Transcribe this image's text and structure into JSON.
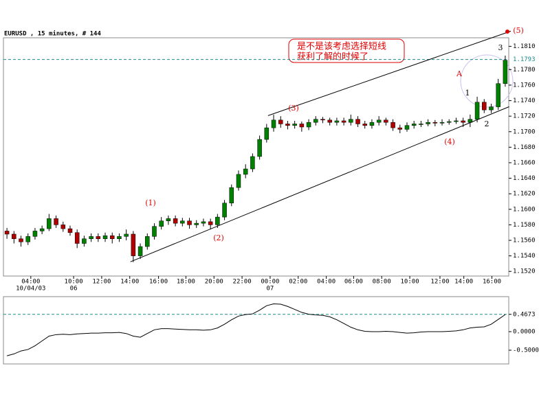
{
  "chart_data": [
    {
      "type": "candlestick",
      "title": "EURUSD , 15 minutes, # 144",
      "up_color": "#008000",
      "down_color": "#b00000",
      "xlim": [
        0,
        72
      ],
      "xticks": [
        {
          "value": 3.9,
          "label": "04:00",
          "sublabel": "10/04/03"
        },
        {
          "value": 10,
          "label": "10:00",
          "sublabel": "06"
        },
        {
          "value": 14,
          "label": "12:00"
        },
        {
          "value": 18,
          "label": "14:00"
        },
        {
          "value": 22.1,
          "label": "16:00"
        },
        {
          "value": 26,
          "label": "18:00"
        },
        {
          "value": 30,
          "label": "20:00"
        },
        {
          "value": 34,
          "label": "22:00"
        },
        {
          "value": 38,
          "label": "00:00",
          "sublabel": "07"
        },
        {
          "value": 42,
          "label": "02:00"
        },
        {
          "value": 46,
          "label": "04:00"
        },
        {
          "value": 49.9,
          "label": "06:00"
        },
        {
          "value": 53.9,
          "label": "08:00"
        },
        {
          "value": 57.9,
          "label": "10:00"
        },
        {
          "value": 62.2,
          "label": "12:00"
        },
        {
          "value": 65.6,
          "label": "14:00"
        },
        {
          "value": 69.6,
          "label": "16:00"
        }
      ],
      "ylim": [
        1.1514,
        1.1821
      ],
      "yticks": [
        {
          "value": 1.152,
          "label": "1.1520"
        },
        {
          "value": 1.154,
          "label": "1.1540"
        },
        {
          "value": 1.156,
          "label": "1.1560"
        },
        {
          "value": 1.158,
          "label": "1.1580"
        },
        {
          "value": 1.16,
          "label": "1.1600"
        },
        {
          "value": 1.162,
          "label": "1.1620"
        },
        {
          "value": 1.164,
          "label": "1.1640"
        },
        {
          "value": 1.166,
          "label": "1.1660"
        },
        {
          "value": 1.168,
          "label": "1.1680"
        },
        {
          "value": 1.17,
          "label": "1.1700"
        },
        {
          "value": 1.172,
          "label": "1.1720"
        },
        {
          "value": 1.174,
          "label": "1.1740"
        },
        {
          "value": 1.176,
          "label": "1.1760"
        },
        {
          "value": 1.178,
          "label": "1.1780"
        },
        {
          "value": 1.181,
          "label": "1.1810"
        }
      ],
      "price_line": 1.1793,
      "open": [
        1.1572,
        1.1568,
        1.1562,
        1.1558,
        1.1565,
        1.1572,
        1.1575,
        1.1588,
        1.158,
        1.1575,
        1.157,
        1.1556,
        1.1562,
        1.1565,
        1.1562,
        1.1566,
        1.1562,
        1.1565,
        1.1568,
        1.154,
        1.1552,
        1.1565,
        1.1578,
        1.1585,
        1.1588,
        1.1582,
        1.1585,
        1.158,
        1.1582,
        1.1584,
        1.158,
        1.159,
        1.1608,
        1.1628,
        1.1645,
        1.1652,
        1.1668,
        1.169,
        1.1705,
        1.1715,
        1.171,
        1.1708,
        1.171,
        1.1706,
        1.1712,
        1.1716,
        1.1715,
        1.1712,
        1.1714,
        1.1712,
        1.1716,
        1.171,
        1.1708,
        1.1712,
        1.1715,
        1.1712,
        1.1705,
        1.1703,
        1.1708,
        1.171,
        1.171,
        1.1712,
        1.1711,
        1.1712,
        1.1713,
        1.1714,
        1.1712,
        1.1716,
        1.1738,
        1.1728,
        1.1732,
        1.1762
      ],
      "high": [
        1.1576,
        1.1572,
        1.1566,
        1.1569,
        1.1576,
        1.1579,
        1.1594,
        1.1592,
        1.1584,
        1.1579,
        1.1574,
        1.1566,
        1.1569,
        1.1569,
        1.157,
        1.157,
        1.1569,
        1.1574,
        1.1572,
        1.1556,
        1.1569,
        1.1582,
        1.159,
        1.1592,
        1.1592,
        1.1589,
        1.1589,
        1.1586,
        1.1588,
        1.1588,
        1.1594,
        1.1612,
        1.1632,
        1.165,
        1.1658,
        1.1672,
        1.1695,
        1.171,
        1.1722,
        1.172,
        1.1714,
        1.1714,
        1.1713,
        1.1716,
        1.172,
        1.1719,
        1.1718,
        1.1718,
        1.1718,
        1.1722,
        1.172,
        1.1714,
        1.1716,
        1.172,
        1.1718,
        1.1716,
        1.1709,
        1.1712,
        1.1714,
        1.1714,
        1.1716,
        1.1715,
        1.1716,
        1.1716,
        1.1718,
        1.1718,
        1.1722,
        1.1745,
        1.1742,
        1.1736,
        1.1768,
        1.1798
      ],
      "low": [
        1.1562,
        1.1556,
        1.1552,
        1.1554,
        1.1561,
        1.1568,
        1.1572,
        1.1576,
        1.1571,
        1.1566,
        1.155,
        1.1552,
        1.1558,
        1.1558,
        1.1558,
        1.1556,
        1.1558,
        1.156,
        1.1532,
        1.1536,
        1.1548,
        1.1561,
        1.1574,
        1.158,
        1.1578,
        1.1578,
        1.1575,
        1.1576,
        1.1578,
        1.1574,
        1.1576,
        1.1586,
        1.1604,
        1.1624,
        1.164,
        1.1648,
        1.1664,
        1.1686,
        1.17,
        1.1705,
        1.1703,
        1.1704,
        1.17,
        1.1702,
        1.1708,
        1.1711,
        1.1708,
        1.1708,
        1.1708,
        1.1708,
        1.1706,
        1.1704,
        1.1704,
        1.1708,
        1.1708,
        1.1701,
        1.1698,
        1.17,
        1.1704,
        1.1706,
        1.1707,
        1.1707,
        1.1708,
        1.1709,
        1.171,
        1.1706,
        1.1706,
        1.1712,
        1.1724,
        1.1724,
        1.1728,
        1.1758
      ],
      "close": [
        1.1568,
        1.1562,
        1.1558,
        1.1565,
        1.1572,
        1.1575,
        1.1588,
        1.158,
        1.1575,
        1.157,
        1.1556,
        1.1562,
        1.1565,
        1.1562,
        1.1566,
        1.1562,
        1.1565,
        1.1568,
        1.154,
        1.1552,
        1.1565,
        1.1578,
        1.1585,
        1.1588,
        1.1582,
        1.1585,
        1.158,
        1.1582,
        1.1584,
        1.158,
        1.159,
        1.1608,
        1.1628,
        1.1645,
        1.1652,
        1.1668,
        1.169,
        1.1705,
        1.1715,
        1.171,
        1.1708,
        1.171,
        1.1706,
        1.1712,
        1.1716,
        1.1715,
        1.1712,
        1.1714,
        1.1712,
        1.1716,
        1.171,
        1.1708,
        1.1712,
        1.1715,
        1.1712,
        1.1705,
        1.1703,
        1.1708,
        1.171,
        1.171,
        1.1712,
        1.1711,
        1.1712,
        1.1713,
        1.1714,
        1.1712,
        1.1716,
        1.1738,
        1.1728,
        1.1732,
        1.1762,
        1.1792
      ],
      "trendlines": [
        {
          "x": [
            37.7,
            72.3
          ],
          "y": [
            1.17207,
            1.18295
          ]
        },
        {
          "x": [
            18.1,
            72.06
          ],
          "y": [
            1.15324,
            1.17322
          ]
        }
      ],
      "annotations": [
        "(1)",
        "(2)",
        "(3)",
        "(4)",
        "(5)",
        "A",
        "1",
        "2",
        "3"
      ],
      "note": [
        "是不是该考虑选择短线",
        "获利了解的时候了"
      ]
    },
    {
      "type": "line",
      "color": "#000000",
      "ylim": [
        -0.87,
        0.944
      ],
      "yticks": [
        0.4673,
        {
          "value": 0,
          "label": "0.0000"
        },
        {
          "value": -0.5,
          "label": "-0.5000"
        }
      ],
      "level_line": 0.4673,
      "values": [
        -0.65,
        -0.6,
        -0.52,
        -0.48,
        -0.38,
        -0.25,
        -0.12,
        -0.08,
        -0.07,
        -0.08,
        -0.06,
        -0.05,
        -0.04,
        -0.04,
        -0.03,
        -0.03,
        -0.02,
        -0.05,
        -0.12,
        -0.15,
        -0.05,
        0.05,
        0.08,
        0.08,
        0.07,
        0.06,
        0.05,
        0.05,
        0.04,
        0.05,
        0.1,
        0.2,
        0.32,
        0.42,
        0.46,
        0.48,
        0.58,
        0.7,
        0.75,
        0.74,
        0.68,
        0.6,
        0.52,
        0.47,
        0.45,
        0.44,
        0.4,
        0.32,
        0.22,
        0.12,
        0.05,
        0.01,
        0,
        0,
        0.01,
        0,
        -0.02,
        -0.04,
        -0.03,
        -0.01,
        0,
        0,
        0,
        0.01,
        0.02,
        0.05,
        0.1,
        0.12,
        0.13,
        0.2,
        0.33,
        0.46
      ]
    }
  ]
}
